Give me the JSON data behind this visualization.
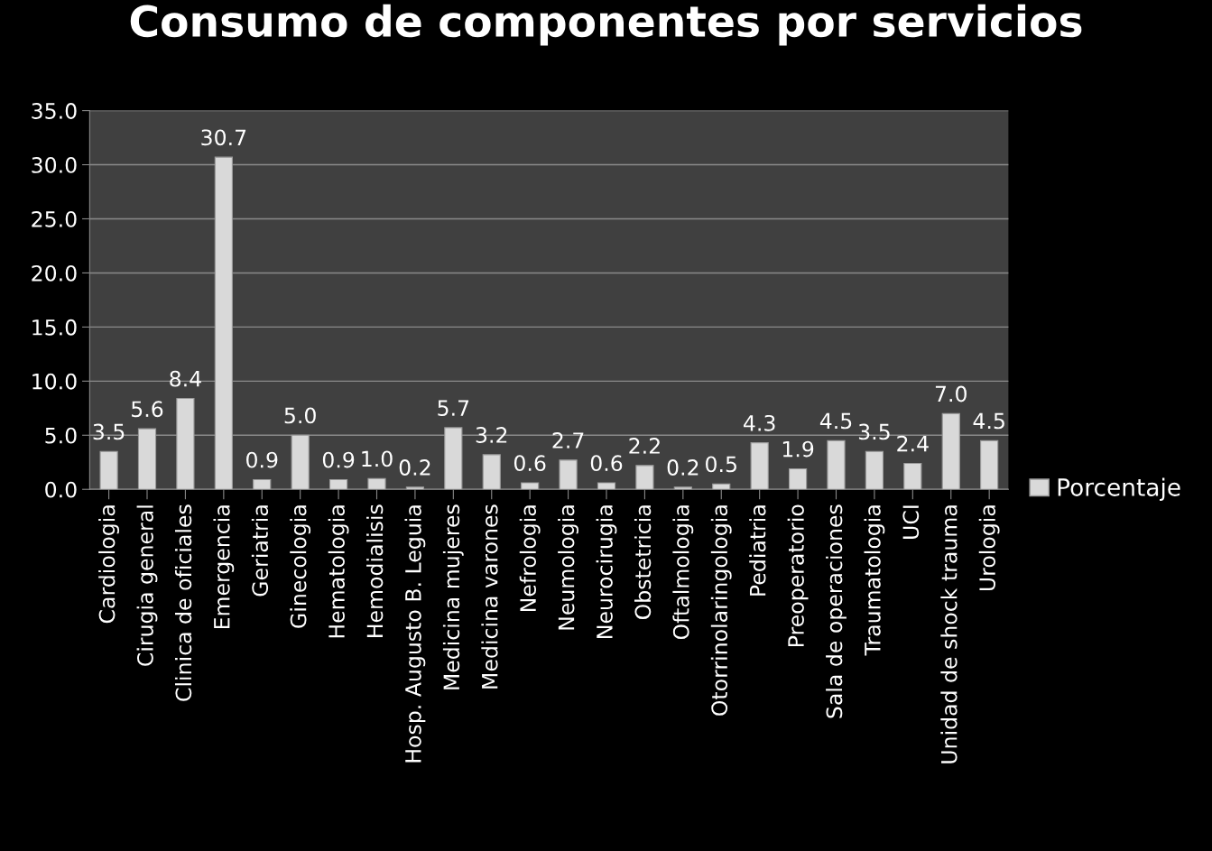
{
  "chart_data": {
    "type": "bar",
    "title": "Consumo de componentes por servicios",
    "categories": [
      "Cardiologia",
      "Cirugia general",
      "Clinica de oficiales",
      "Emergencia",
      "Geriatria",
      "Ginecologia",
      "Hematologia",
      "Hemodialisis",
      "Hosp. Augusto B. Leguia",
      "Medicina mujeres",
      "Medicina varones",
      "Nefrologia",
      "Neumologia",
      "Neurocirugia",
      "Obstetricia",
      "Oftalmologia",
      "Otorrinolaringologia",
      "Pediatria",
      "Preoperatorio",
      "Sala de operaciones",
      "Traumatologia",
      "UCI",
      "Unidad de shock trauma",
      "Urologia"
    ],
    "series": [
      {
        "name": "Porcentaje",
        "color": "#d9d9d9",
        "values": [
          3.5,
          5.6,
          8.4,
          30.7,
          0.9,
          5.0,
          0.9,
          1.0,
          0.2,
          5.7,
          3.2,
          0.6,
          2.7,
          0.6,
          2.2,
          0.2,
          0.5,
          4.3,
          1.9,
          4.5,
          3.5,
          2.4,
          7.0,
          4.5
        ],
        "value_labels": [
          "3.5",
          "5.6",
          "8.4",
          "30.7",
          "0.9",
          "5.0",
          "0.9",
          "1.0",
          "0.2",
          "5.7",
          "3.2",
          "0.6",
          "2.7",
          "0.6",
          "2.2",
          "0.2",
          "0.5",
          "4.3",
          "1.9",
          "4.5",
          "3.5",
          "2.4",
          "7.0",
          "4.5"
        ]
      }
    ],
    "ylim": [
      0,
      35
    ],
    "yticks": [
      {
        "value": 0,
        "label": "0.0"
      },
      {
        "value": 5,
        "label": "5.0"
      },
      {
        "value": 10,
        "label": "10.0"
      },
      {
        "value": 15,
        "label": "15.0"
      },
      {
        "value": 20,
        "label": "20.0"
      },
      {
        "value": 25,
        "label": "25.0"
      },
      {
        "value": 30,
        "label": "30.0"
      },
      {
        "value": 35,
        "label": "35.0"
      }
    ],
    "grid": "y",
    "legend": "right"
  }
}
